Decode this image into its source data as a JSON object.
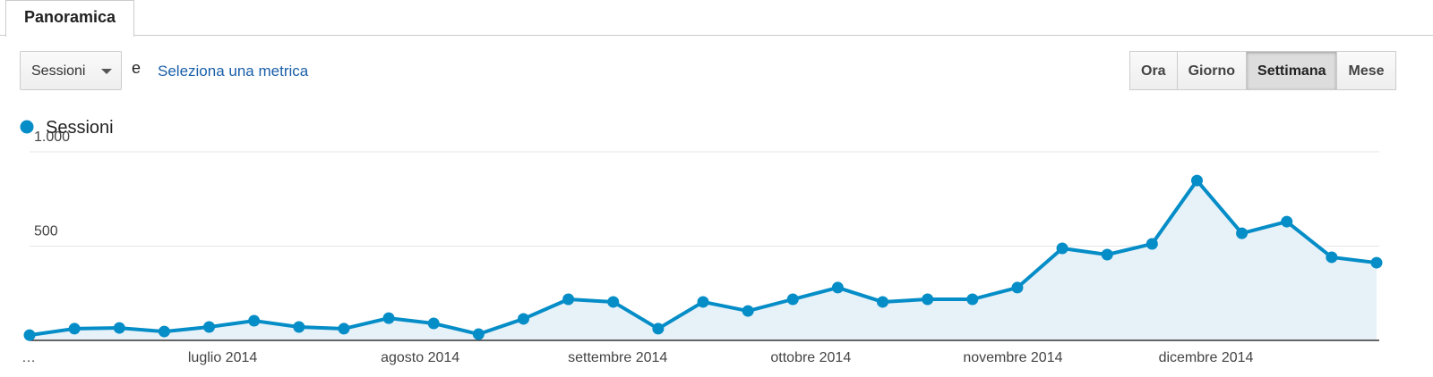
{
  "tab": {
    "title": "Panoramica"
  },
  "controls": {
    "metric": "Sessioni",
    "conjunction": "e",
    "link": "Seleziona una metrica",
    "buttons": [
      "Ora",
      "Giorno",
      "Settimana",
      "Mese"
    ],
    "selected": "Settimana"
  },
  "chart_data": {
    "type": "line",
    "categories": [
      null,
      null,
      null,
      null,
      null,
      null,
      null,
      null,
      null,
      null,
      null,
      null,
      null,
      null,
      null,
      null,
      null,
      null,
      null,
      null,
      null,
      null,
      null,
      null,
      null,
      null,
      null,
      null,
      null,
      null,
      null
    ],
    "series": [
      {
        "name": "Sessioni",
        "color": "#058dc7",
        "values": [
          28,
          62,
          66,
          47,
          71,
          104,
          71,
          62,
          118,
          90,
          33,
          114,
          218,
          204,
          62,
          204,
          156,
          218,
          280,
          204,
          218,
          218,
          280,
          488,
          455,
          512,
          848,
          568,
          630,
          441,
          412
        ]
      }
    ],
    "ylim": [
      0,
      1000
    ],
    "yticks": [
      500,
      {
        "value": 1000,
        "label": "1.000"
      }
    ],
    "xticks": [
      {
        "value": 0,
        "label": "…"
      },
      {
        "value": 4.3,
        "label": "luglio 2014"
      },
      {
        "value": 8.7,
        "label": "agosto 2014"
      },
      {
        "value": 13.1,
        "label": "settembre 2014"
      },
      {
        "value": 17.4,
        "label": "ottobre 2014"
      },
      {
        "value": 21.9,
        "label": "novembre 2014"
      },
      {
        "value": 26.2,
        "label": "dicembre 2014"
      }
    ],
    "grid": true,
    "area": true
  }
}
